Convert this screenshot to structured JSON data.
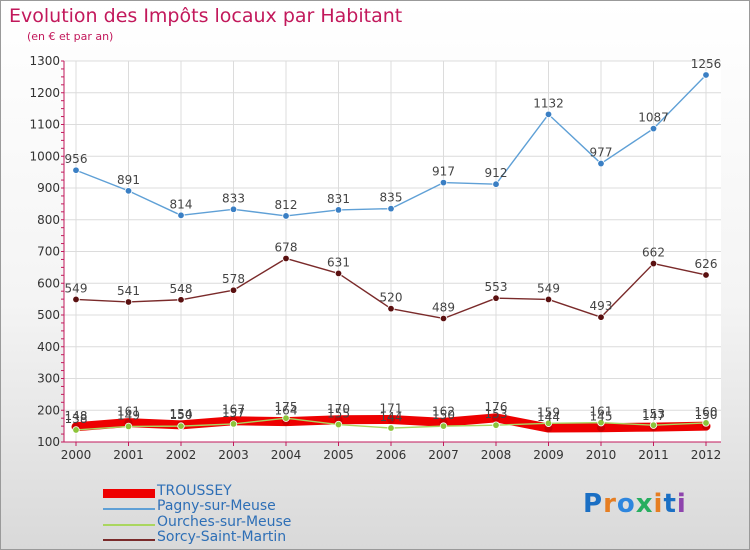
{
  "title": "Evolution des Impôts locaux par Habitant",
  "subtitle": "(en € et par an)",
  "logo": {
    "text": "Proxiti",
    "letter_colors": [
      "#1a6fc4",
      "#e67e22",
      "#2e86de",
      "#27ae60",
      "#e67e22",
      "#1a6fc4",
      "#8e44ad"
    ]
  },
  "chart_data": {
    "type": "line",
    "title": "Evolution des Impôts locaux par Habitant",
    "subtitle": "(en € et par an)",
    "xlabel": "",
    "ylabel": "",
    "x": [
      "2000",
      "2001",
      "2002",
      "2003",
      "2004",
      "2005",
      "2006",
      "2007",
      "2008",
      "2009",
      "2010",
      "2011",
      "2012"
    ],
    "ylim": [
      100,
      1300
    ],
    "yticks": [
      100,
      200,
      300,
      400,
      500,
      600,
      700,
      800,
      900,
      1000,
      1100,
      1200,
      1300
    ],
    "grid": true,
    "legend_position": "bottom-left",
    "series": [
      {
        "name": "TROUSSEY",
        "color": "#ee0000",
        "marker_color": "#cc0000",
        "thick": true,
        "values": [
          148,
          161,
          154,
          167,
          164,
          170,
          171,
          162,
          176,
          144,
          145,
          147,
          150
        ]
      },
      {
        "name": "Pagny-sur-Meuse",
        "color": "#5fa0d6",
        "marker_color": "#3a7fc4",
        "thick": false,
        "values": [
          956,
          891,
          814,
          833,
          812,
          831,
          835,
          917,
          912,
          1132,
          977,
          1087,
          1256
        ]
      },
      {
        "name": "Ourches-sur-Meuse",
        "color": "#aad65f",
        "marker_color": "#8cc43a",
        "thick": false,
        "values": [
          138,
          149,
          150,
          157,
          175,
          155,
          144,
          150,
          153,
          159,
          161,
          153,
          160
        ]
      },
      {
        "name": "Sorcy-Saint-Martin",
        "color": "#7a2a2a",
        "marker_color": "#5a1010",
        "thick": false,
        "values": [
          549,
          541,
          548,
          578,
          678,
          631,
          520,
          489,
          553,
          549,
          493,
          662,
          626
        ]
      }
    ]
  }
}
